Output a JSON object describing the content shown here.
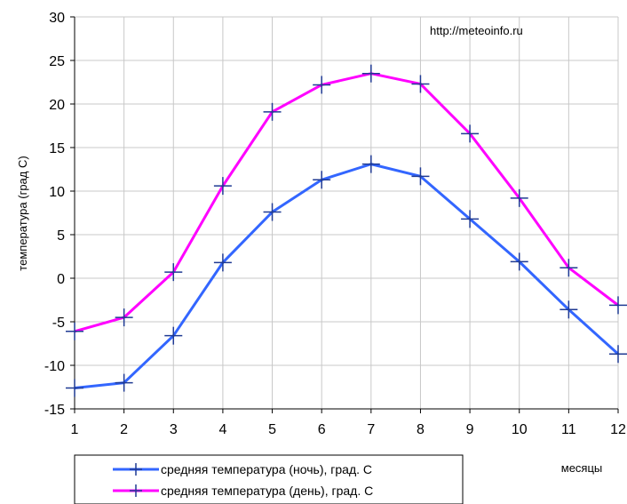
{
  "chart_data": {
    "type": "line",
    "source_text": "http://meteoinfo.ru",
    "xlabel": "месяцы",
    "ylabel": "температура (град  С)",
    "x": [
      1,
      2,
      3,
      4,
      5,
      6,
      7,
      8,
      9,
      10,
      11,
      12
    ],
    "xlim": [
      1,
      12
    ],
    "ylim": [
      -15,
      30
    ],
    "yticks": [
      -15,
      -10,
      -5,
      0,
      5,
      10,
      15,
      20,
      25,
      30
    ],
    "grid": true,
    "legend_position": "bottom-left",
    "series": [
      {
        "name": "средняя температура (ночь), град. С",
        "color": "#3366ff",
        "values": [
          -12.6,
          -12.0,
          -6.6,
          1.8,
          7.6,
          11.3,
          13.1,
          11.7,
          6.8,
          1.9,
          -3.6,
          -8.7
        ]
      },
      {
        "name": "средняя температура (день), град. С",
        "color": "#ff00ff",
        "values": [
          -6.1,
          -4.5,
          0.7,
          10.6,
          19.1,
          22.2,
          23.5,
          22.3,
          16.6,
          9.2,
          1.2,
          -3.1
        ]
      }
    ]
  }
}
